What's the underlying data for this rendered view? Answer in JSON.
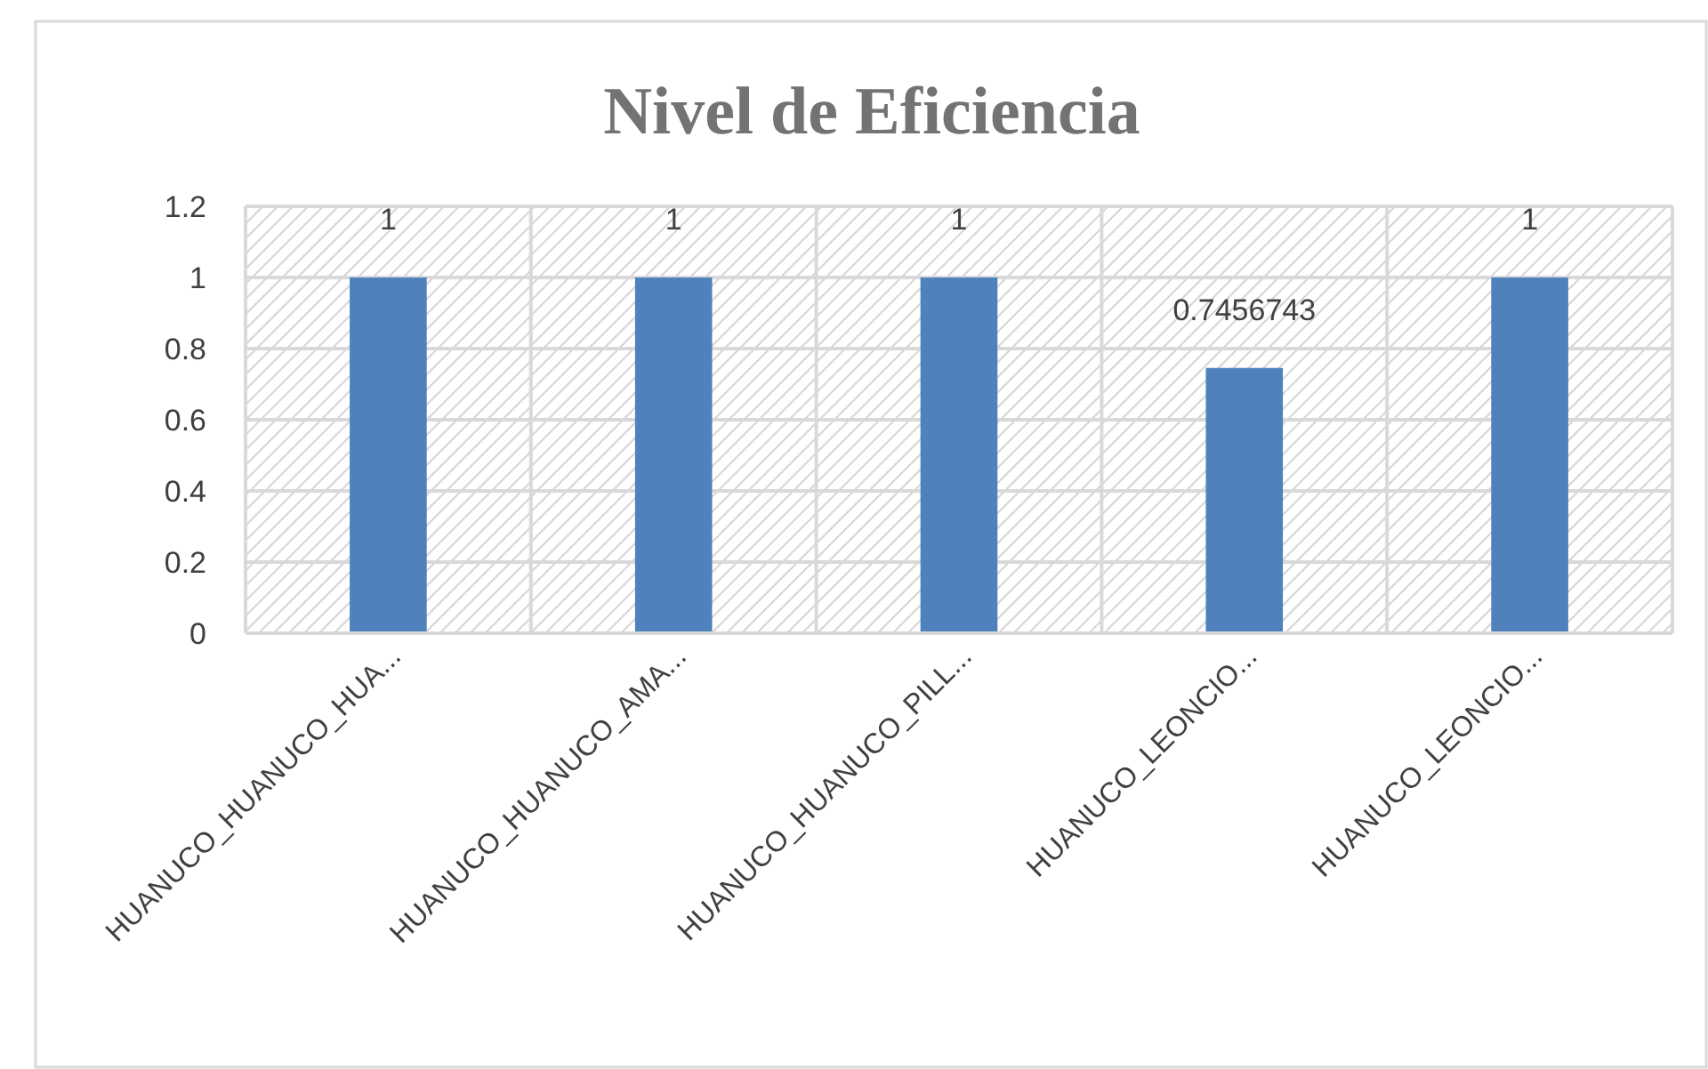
{
  "chart_data": {
    "type": "bar",
    "title": "Nivel de Eficiencia",
    "categories": [
      "HUANUCO_HUANUCO_HUA...",
      "HUANUCO_HUANUCO_AMA...",
      "HUANUCO_HUANUCO_PILL...",
      "HUANUCO_LEONCIO...",
      "HUANUCO_LEONCIO..."
    ],
    "values": [
      1,
      1,
      1,
      0.7456743,
      1
    ],
    "color": "#4f81bd",
    "ylim": [
      0,
      1.2
    ],
    "yticks": [
      0,
      {
        "value": 0.2,
        "label": "0.2"
      },
      {
        "value": 0.4,
        "label": "0.4"
      },
      {
        "value": 0.6,
        "label": "0.6"
      },
      {
        "value": 0.8,
        "label": "0.8"
      },
      1,
      {
        "value": 1.2,
        "label": "1.2"
      }
    ],
    "grid": true,
    "data_labels": true
  }
}
